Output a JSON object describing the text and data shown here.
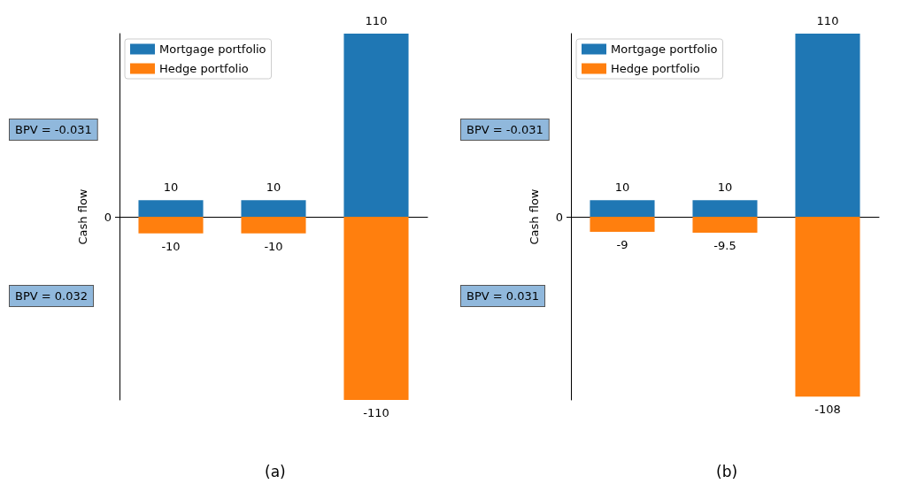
{
  "chart_data": [
    {
      "type": "bar",
      "xlabel": "(a)",
      "ylabel": "Cash flow",
      "categories": [
        null,
        null,
        null
      ],
      "stacked": true,
      "data_labels": true,
      "legend": "top left",
      "grid": false,
      "series": [
        {
          "name": "Mortgage portfolio",
          "color": "#1f77b4",
          "values": [
            10,
            10,
            110
          ]
        },
        {
          "name": "Hedge portfolio",
          "color": "#ff7f0e",
          "values": [
            -10,
            -10,
            -110
          ]
        }
      ],
      "ylim": [
        -110,
        110
      ],
      "annotations": [
        "BPV = -0.031",
        "BPV = 0.032",
        "0"
      ]
    },
    {
      "type": "bar",
      "xlabel": "(b)",
      "ylabel": "Cash flow",
      "categories": [
        null,
        null,
        null
      ],
      "stacked": true,
      "data_labels": true,
      "legend": "top left",
      "grid": false,
      "series": [
        {
          "name": "Mortgage portfolio",
          "color": "#1f77b4",
          "values": [
            10,
            10,
            110
          ]
        },
        {
          "name": "Hedge portfolio",
          "color": "#ff7f0e",
          "values": [
            -9,
            -9.5,
            -108
          ]
        }
      ],
      "ylim": [
        -110,
        110
      ],
      "annotations": [
        "BPV = -0.031",
        "BPV = 0.031",
        "0"
      ]
    }
  ]
}
